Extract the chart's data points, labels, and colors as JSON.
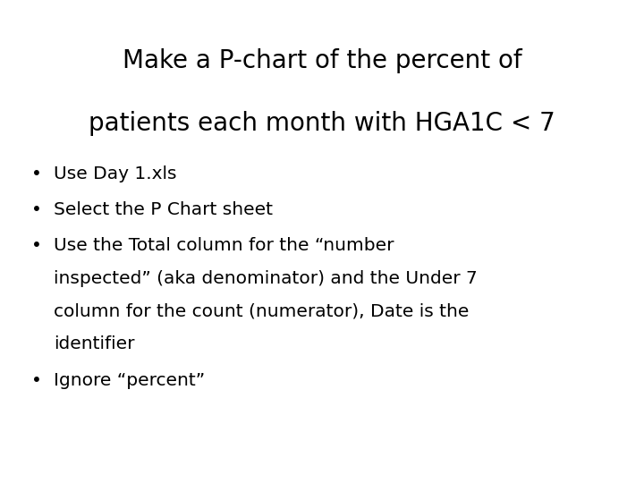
{
  "title_line1": "Make a P-chart of the percent of",
  "title_line2": "patients each month with HGA1C < 7",
  "bullet1": "Use Day 1.xls",
  "bullet2": "Select the P Chart sheet",
  "bullet3_line1": "Use the Total column for the “number",
  "bullet3_line2": "inspected” (aka denominator) and the Under 7",
  "bullet3_line3": "column for the count (numerator), Date is the",
  "bullet3_line4": "identifier",
  "bullet4": "Ignore “percent”",
  "background_color": "#ffffff",
  "text_color": "#000000",
  "title_fontsize": 20,
  "body_fontsize": 14.5,
  "bullet_char": "•"
}
